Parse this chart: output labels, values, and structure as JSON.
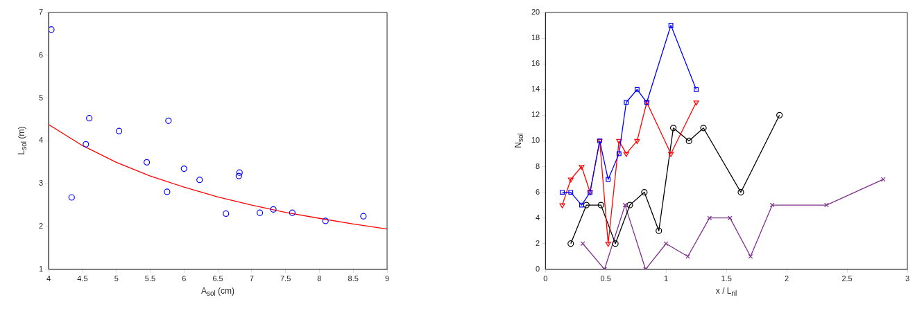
{
  "chart_data": [
    {
      "type": "scatter",
      "xlabel": "A$_{sol}$ (cm)",
      "ylabel": "L$_{sol}$ (m)",
      "xlim": [
        4,
        9
      ],
      "ylim": [
        1,
        7
      ],
      "xticks": [
        4,
        4.5,
        5,
        5.5,
        6,
        6.5,
        7,
        7.5,
        8,
        8.5,
        9
      ],
      "yticks": [
        1,
        2,
        3,
        4,
        5,
        6,
        7
      ],
      "grid": false,
      "legend": false,
      "x": [
        4.04,
        4.34,
        4.55,
        4.6,
        5.04,
        5.45,
        5.75,
        5.77,
        6.0,
        6.23,
        6.62,
        6.81,
        6.82,
        7.12,
        7.32,
        7.6,
        8.09,
        8.65
      ],
      "series": [
        {
          "type": "scatter",
          "color": "#0000ff",
          "marker": "circle",
          "values": [
            6.6,
            2.68,
            3.92,
            4.53,
            4.23,
            3.5,
            2.81,
            4.47,
            3.35,
            3.09,
            2.3,
            3.18,
            3.26,
            2.32,
            2.4,
            2.32,
            2.13,
            2.24
          ]
        },
        {
          "type": "line",
          "color": "#ff0000",
          "marker": "none",
          "x": [
            4,
            4.5,
            5,
            5.5,
            6,
            6.5,
            7,
            7.5,
            8,
            8.5,
            9
          ],
          "values": [
            4.38,
            3.89,
            3.5,
            3.18,
            2.92,
            2.69,
            2.5,
            2.33,
            2.19,
            2.06,
            1.94
          ]
        }
      ]
    },
    {
      "type": "line",
      "xlabel": "x / L$_{nl}$",
      "ylabel": "N$_{sol}$",
      "xlim": [
        0,
        3
      ],
      "ylim": [
        0,
        20
      ],
      "xticks": [
        0,
        0.5,
        1,
        1.5,
        2,
        2.5,
        3
      ],
      "yticks": [
        0,
        2,
        4,
        6,
        8,
        10,
        12,
        14,
        16,
        18,
        20
      ],
      "grid": false,
      "legend": false,
      "series": [
        {
          "color": "#0000ff",
          "marker": "square",
          "x": [
            0.14,
            0.21,
            0.3,
            0.37,
            0.45,
            0.52,
            0.61,
            0.67,
            0.76,
            0.84,
            1.04,
            1.25
          ],
          "values": [
            6,
            6,
            5,
            6,
            10,
            7,
            9,
            13,
            14,
            13,
            19,
            14
          ]
        },
        {
          "color": "#ff0000",
          "marker": "triangle",
          "x": [
            0.14,
            0.21,
            0.3,
            0.37,
            0.45,
            0.52,
            0.61,
            0.67,
            0.76,
            0.84,
            1.04,
            1.25
          ],
          "values": [
            5,
            7,
            8,
            6,
            10,
            2,
            10,
            9,
            10,
            13,
            9,
            13
          ]
        },
        {
          "color": "#000000",
          "marker": "circle",
          "x": [
            0.21,
            0.34,
            0.46,
            0.58,
            0.7,
            0.82,
            0.94,
            1.06,
            1.19,
            1.31,
            1.62,
            1.94
          ],
          "values": [
            2,
            5,
            5,
            2,
            5,
            6,
            3,
            11,
            10,
            11,
            6,
            12
          ]
        },
        {
          "color": "#7e2f8e",
          "marker": "cross",
          "x": [
            0.31,
            0.49,
            0.66,
            0.83,
            1.0,
            1.18,
            1.36,
            1.53,
            1.7,
            1.88,
            2.33,
            2.8
          ],
          "values": [
            2,
            0,
            5,
            0,
            2,
            1,
            4,
            4,
            1,
            5,
            5,
            7
          ]
        }
      ]
    }
  ]
}
